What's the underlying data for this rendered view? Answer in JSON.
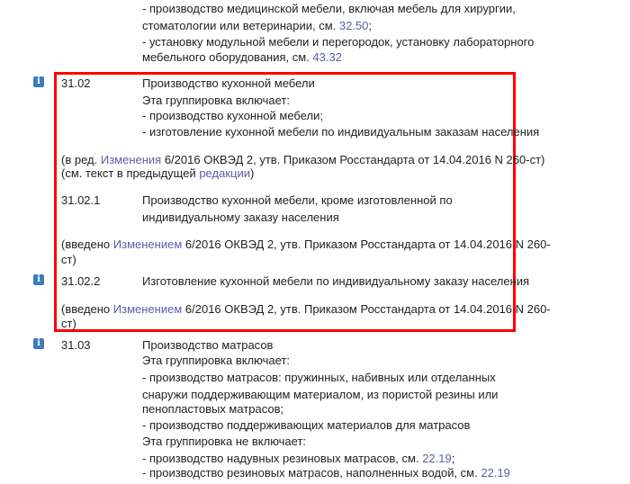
{
  "colors": {
    "link": "#5b5ea6",
    "highlight_border": "#ff0000",
    "info_icon": "#3b7bbf"
  },
  "top": {
    "l1": "- производство медицинской мебели, включая мебель для хирургии,",
    "l2": "стоматологии или ветеринарии, см. ",
    "l2_link": "32.50",
    "l2_end": ";",
    "l3": "- установку модульной мебели и перегородок, установку лабораторного",
    "l4": "мебельного оборудования, см. ",
    "l4_link": "43.32"
  },
  "s3102": {
    "code": "31.02",
    "title": "Производство кухонной мебели",
    "l2": "Эта группировка включает:",
    "l3": "- производство кухонной мебели;",
    "l4": "- изготовление кухонной мебели по индивидуальным заказам населения",
    "note1_a": "(в ред. ",
    "note1_link": "Изменения",
    "note1_b": " 6/2016 ОКВЭД 2, утв. Приказом Росстандарта от 14.04.2016 N 260-ст)",
    "note2_a": "(см. текст в предыдущей ",
    "note2_link": "редакции",
    "note2_b": ")"
  },
  "s31021": {
    "code": "31.02.1",
    "title1": "Производство кухонной мебели, кроме изготовленной по",
    "title2": "индивидуальному заказу населения",
    "note_a": "(введено ",
    "note_link": "Изменением",
    "note_b": " 6/2016 ОКВЭД 2, утв. Приказом Росстандарта от 14.04.2016 N 260-",
    "note_c": "ст)"
  },
  "s31022": {
    "code": "31.02.2",
    "title": "Изготовление кухонной мебели по индивидуальному заказу населения",
    "note_a": "(введено ",
    "note_link": "Изменением",
    "note_b": " 6/2016 ОКВЭД 2, утв. Приказом Росстандарта от 14.04.2016 N 260-",
    "note_c": "ст)"
  },
  "s3103": {
    "code": "31.03",
    "title": "Производство матрасов",
    "l2": "Эта группировка включает:",
    "l3": "- производство матрасов: пружинных, набивных или отделанных",
    "l4": "снаружи поддерживающим материалом, из пористой резины или",
    "l5": "пенопластовых матрасов;",
    "l6": "- производство поддерживающих материалов для матрасов",
    "l7": "Эта группировка не включает:",
    "l8": "- производство надувных резиновых матрасов, см. ",
    "l8_link": "22.19",
    "l8_end": ";",
    "l9": "- производство резиновых матрасов, наполненных водой, см. ",
    "l9_link": "22.19"
  },
  "info_icon_glyph": "i"
}
